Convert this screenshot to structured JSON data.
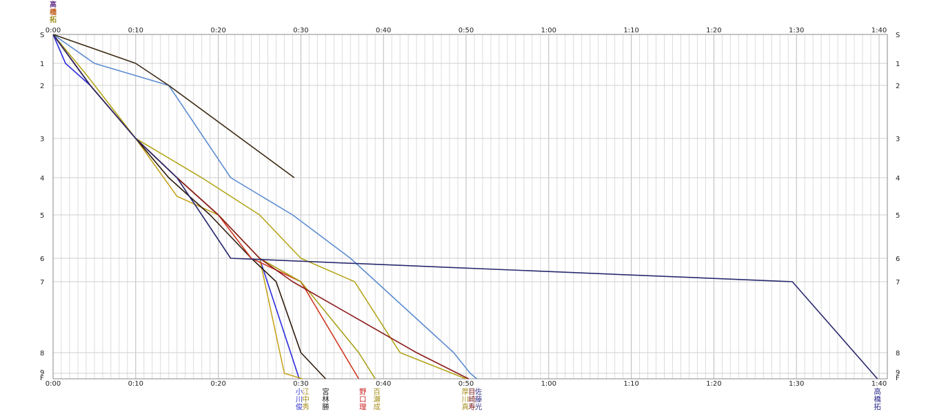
{
  "chart_data": {
    "type": "line",
    "title": "",
    "xlabel": "",
    "ylabel": "",
    "x_unit": "minutes",
    "xlim": [
      0,
      101
    ],
    "x_major_ticks": [
      {
        "value": 0,
        "label": "0:00"
      },
      {
        "value": 10,
        "label": "0:10"
      },
      {
        "value": 20,
        "label": "0:20"
      },
      {
        "value": 30,
        "label": "0:30"
      },
      {
        "value": 40,
        "label": "0:40"
      },
      {
        "value": 50,
        "label": "0:50"
      },
      {
        "value": 60,
        "label": "1:00"
      },
      {
        "value": 70,
        "label": "1:10"
      },
      {
        "value": 80,
        "label": "1:20"
      },
      {
        "value": 90,
        "label": "1:30"
      },
      {
        "value": 100,
        "label": "1:40"
      }
    ],
    "x_minor_step": 1,
    "stations": [
      "S",
      "1",
      "2",
      "3",
      "4",
      "5",
      "6",
      "7",
      "8",
      "9",
      "F"
    ],
    "y_ticks": [
      "S",
      "1",
      "2",
      "3",
      "4",
      "5",
      "6",
      "7",
      "8",
      "9",
      "F"
    ],
    "grid": true,
    "series": [
      {
        "name": "小川俊",
        "color": "#2b2bdd",
        "x": [
          0,
          1.5,
          4.5,
          10,
          15,
          20,
          25,
          29.8
        ],
        "station_index": [
          0,
          1,
          2,
          3,
          4,
          5,
          6,
          10
        ]
      },
      {
        "name": "江中秀",
        "color": "#c7a51f",
        "x": [
          0,
          4.5,
          10,
          15,
          20,
          25,
          28,
          30.2
        ],
        "station_index": [
          0,
          2,
          3,
          4.5,
          5,
          6,
          9,
          10
        ]
      },
      {
        "name": "宮林勝",
        "color": "#2c1a0c",
        "x": [
          0,
          4.5,
          10,
          14,
          19,
          24,
          27,
          30,
          33
        ],
        "station_index": [
          0,
          2,
          3,
          4,
          5,
          6,
          7,
          8,
          10
        ]
      },
      {
        "name": "野口理",
        "color": "#d03820",
        "x": [
          0,
          4.5,
          10,
          15,
          20,
          24,
          30,
          37
        ],
        "station_index": [
          0,
          2,
          3,
          4,
          5,
          6,
          7,
          10
        ]
      },
      {
        "name": "百瀬成",
        "color": "#a8a018",
        "x": [
          0,
          4.5,
          10,
          15,
          20,
          25,
          30,
          37,
          39
        ],
        "station_index": [
          0,
          2,
          3,
          4,
          5,
          6,
          7,
          8,
          10
        ]
      },
      {
        "name": "厚川真",
        "color": "#b3a418",
        "x": [
          0,
          4,
          10,
          18,
          25,
          30,
          36.5,
          42,
          50
        ],
        "station_index": [
          0,
          1.5,
          3,
          4,
          5,
          6,
          7,
          8,
          10
        ]
      },
      {
        "name": "目崎寿",
        "color": "#5b8bd0",
        "x": [
          0,
          5,
          14,
          21.5,
          29,
          36,
          48.5,
          50.5,
          51.3
        ],
        "station_index": [
          0,
          1,
          2,
          4,
          5,
          6,
          8,
          9,
          10
        ]
      },
      {
        "name": "佐藤光",
        "color": "#8b1a1a",
        "x": [
          0,
          4.5,
          10,
          15,
          20,
          25,
          29,
          44,
          50.3
        ],
        "station_index": [
          0,
          2,
          3,
          4,
          5,
          6,
          7,
          8,
          10
        ]
      },
      {
        "name": "高橋拓",
        "color": "#28286e",
        "x": [
          0,
          4.5,
          10,
          15,
          21.5,
          89.5,
          99.8
        ],
        "station_index": [
          0,
          2,
          3,
          4,
          6,
          7,
          10
        ]
      },
      {
        "name": "",
        "color": "#3c2a14",
        "x": [
          0,
          10,
          14,
          29.2
        ],
        "station_index": [
          0,
          1,
          2,
          4
        ]
      }
    ],
    "end_labels": [
      {
        "text": "小川俊",
        "x": 29.8,
        "color": "#3333cc"
      },
      {
        "text": "江中秀",
        "x": 30.6,
        "color": "#a89020"
      },
      {
        "text": "宮林勝",
        "x": 33,
        "color": "#222222"
      },
      {
        "text": "野口理",
        "x": 37.5,
        "color": "#cc2222"
      },
      {
        "text": "百瀬成",
        "x": 39.2,
        "color": "#a89020"
      },
      {
        "text": "厚川真",
        "x": 49.9,
        "color": "#a89020"
      },
      {
        "text": "目崎寿",
        "x": 50.7,
        "color": "#7a2020"
      },
      {
        "text": "佐藤光",
        "x": 51.5,
        "color": "#3a3a88"
      },
      {
        "text": "高橋拓",
        "x": 99.8,
        "color": "#2a2a88"
      }
    ],
    "top_stacked_label": {
      "text": "高橋拓",
      "x": 0
    }
  }
}
